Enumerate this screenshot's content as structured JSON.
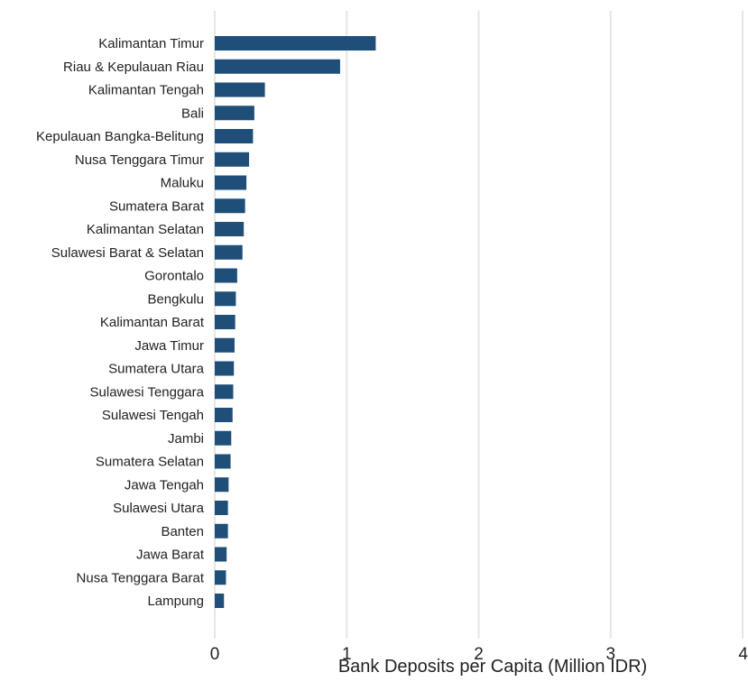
{
  "chart_data": {
    "type": "bar",
    "orientation": "horizontal",
    "title": "",
    "xlabel": "Bank Deposits per Capita (Million IDR)",
    "ylabel": "",
    "xlim": [
      0,
      4
    ],
    "x_ticks": [
      0,
      1,
      2,
      3,
      4
    ],
    "grid": "vertical",
    "bar_color": "#1f4e79",
    "categories": [
      "Kalimantan Timur",
      "Riau & Kepulauan Riau",
      "Kalimantan Tengah",
      "Bali",
      "Kepulauan Bangka-Belitung",
      "Nusa Tenggara Timur",
      "Maluku",
      "Sumatera Barat",
      "Kalimantan Selatan",
      "Sulawesi Barat & Selatan",
      "Gorontalo",
      "Bengkulu",
      "Kalimantan Barat",
      "Jawa Timur",
      "Sumatera Utara",
      "Sulawesi Tenggara",
      "Sulawesi Tengah",
      "Jambi",
      "Sumatera Selatan",
      "Jawa Tengah",
      "Sulawesi Utara",
      "Banten",
      "Jawa Barat",
      "Nusa Tenggara Barat",
      "Lampung"
    ],
    "values": [
      1.22,
      0.95,
      0.38,
      0.3,
      0.29,
      0.26,
      0.24,
      0.23,
      0.22,
      0.21,
      0.17,
      0.16,
      0.155,
      0.15,
      0.145,
      0.14,
      0.135,
      0.125,
      0.12,
      0.105,
      0.1,
      0.1,
      0.09,
      0.085,
      0.07
    ]
  }
}
